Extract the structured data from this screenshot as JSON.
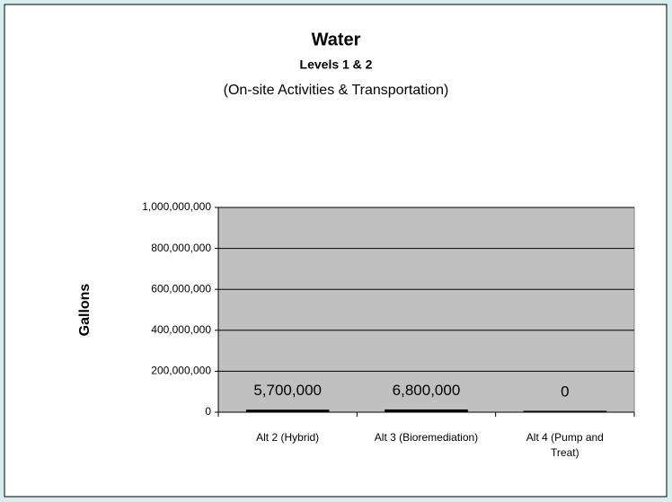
{
  "chart_data": {
    "type": "bar",
    "title": "Water",
    "subtitle": "Levels 1 & 2",
    "subtitle2": "(On-site Activities & Transportation)",
    "y_label": "Gallons",
    "categories": [
      "Alt 2 (Hybrid)",
      "Alt 3 (Bioremediation)",
      "Alt 4 (Pump and Treat)"
    ],
    "values": [
      5700000,
      6800000,
      0
    ],
    "value_labels": [
      "5,700,000",
      "6,800,000",
      "0"
    ],
    "color": "#000000",
    "ylim": [
      0,
      1000000000
    ],
    "yticks": [
      0,
      {
        "value": 200000000,
        "label": "200,000,000"
      },
      {
        "value": 400000000,
        "label": "400,000,000"
      },
      {
        "value": 600000000,
        "label": "600,000,000"
      },
      {
        "value": 800000000,
        "label": "800,000,000"
      },
      {
        "value": 1000000000,
        "label": "1,000,000,000"
      }
    ],
    "grid": true
  }
}
